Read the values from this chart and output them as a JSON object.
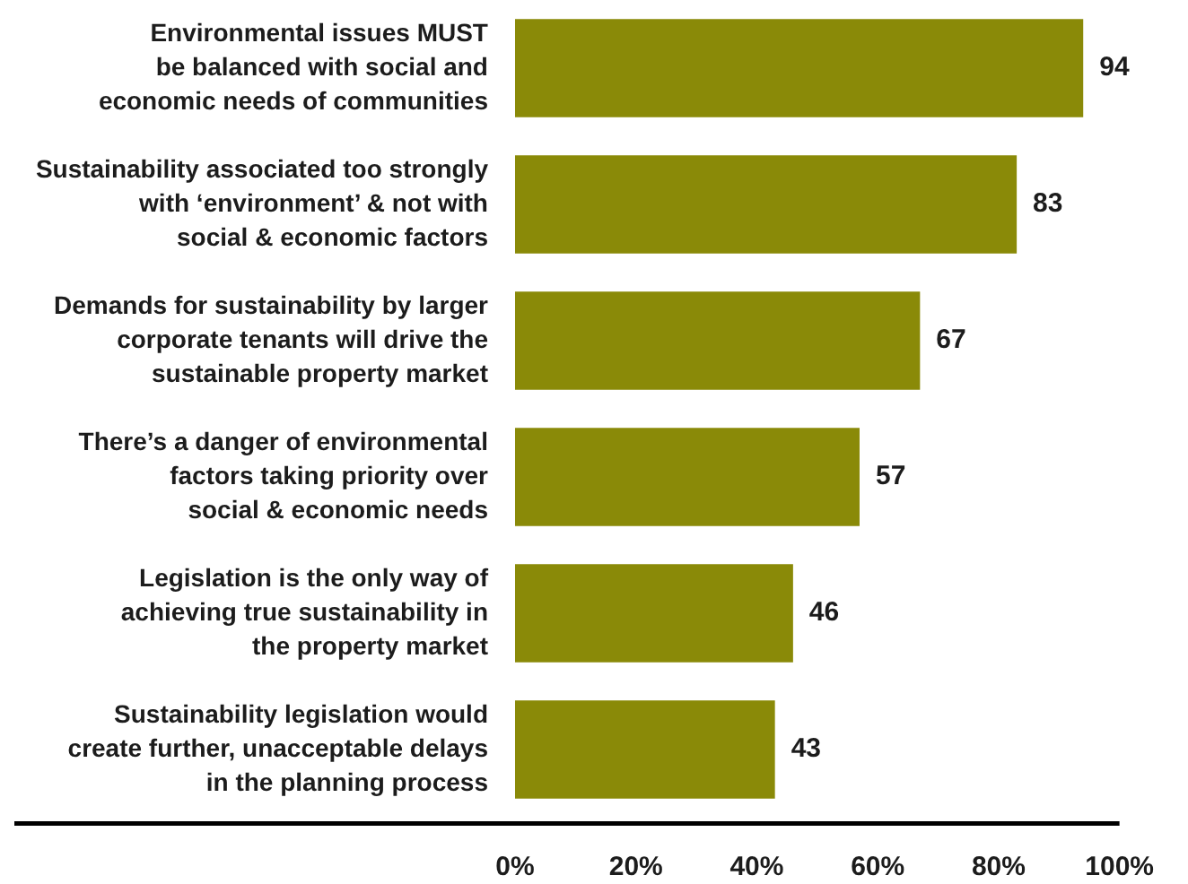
{
  "chart_data": {
    "type": "bar",
    "orientation": "horizontal",
    "categories": [
      "Environmental issues MUST\nbe balanced with social and\neconomic needs of communities",
      "Sustainability associated too strongly\nwith ‘environment’ & not with\nsocial & economic factors",
      "Demands for sustainability by larger\ncorporate tenants will drive the\nsustainable property market",
      "There’s a danger of environmental\nfactors taking priority over\nsocial & economic needs",
      "Legislation is the only way of\nachieving true sustainability in\nthe property market",
      "Sustainability legislation would\ncreate further, unacceptable delays\nin the planning process"
    ],
    "values": [
      94,
      83,
      67,
      57,
      46,
      43
    ],
    "color": "#8a8a08",
    "xlim": [
      0,
      100
    ],
    "xticks": [
      {
        "value": 0,
        "label": "0%"
      },
      {
        "value": 20,
        "label": "20%"
      },
      {
        "value": 40,
        "label": "40%"
      },
      {
        "value": 60,
        "label": "60%"
      },
      {
        "value": 80,
        "label": "80%"
      },
      {
        "value": 100,
        "label": "100%"
      }
    ],
    "data_labels": true,
    "grid": false,
    "legend": false
  }
}
